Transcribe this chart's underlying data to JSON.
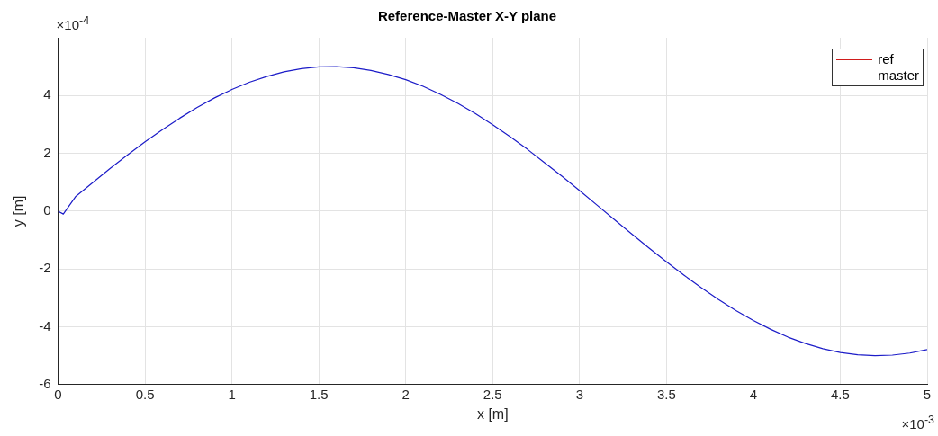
{
  "chart_data": {
    "type": "line",
    "title": "Reference-Master X-Y plane",
    "xlabel": "x [m]",
    "ylabel": "y [m]",
    "annotations": [
      "×10$^{-4}$",
      "×10$^{-3}$"
    ],
    "x": [
      0,
      0.03,
      0.1,
      0.2,
      0.3,
      0.4,
      0.5,
      0.6,
      0.7,
      0.8,
      0.9,
      1,
      1.1,
      1.2,
      1.3,
      1.4,
      1.5,
      1.6,
      1.7,
      1.8,
      1.9,
      2,
      2.1,
      2.2,
      2.3,
      2.4,
      2.5,
      2.6,
      2.7,
      2.8,
      2.9,
      3,
      3.1,
      3.2,
      3.3,
      3.4,
      3.5,
      3.6,
      3.7,
      3.8,
      3.9,
      4,
      4.1,
      4.2,
      4.3,
      4.4,
      4.5,
      4.6,
      4.7,
      4.8,
      4.9,
      5
    ],
    "series": [
      {
        "name": "ref",
        "color": "#d01c1c",
        "values": [
          null,
          null,
          null,
          null,
          null,
          null,
          null,
          null,
          null,
          null,
          null,
          null,
          null,
          null,
          null,
          null,
          null,
          null,
          null,
          null,
          null,
          null,
          null,
          null,
          null,
          null,
          null,
          null,
          null,
          null,
          null,
          null,
          null,
          null,
          null,
          null,
          null,
          null,
          null,
          null,
          null,
          null,
          null,
          null,
          null,
          null,
          null,
          null,
          null,
          null,
          null,
          null
        ]
      },
      {
        "name": "master",
        "color": "#1c1cc8",
        "values": [
          0,
          -0.1,
          0.5,
          0.99,
          1.48,
          1.95,
          2.4,
          2.82,
          3.22,
          3.59,
          3.92,
          4.21,
          4.46,
          4.66,
          4.82,
          4.93,
          4.99,
          5,
          4.96,
          4.87,
          4.73,
          4.55,
          4.32,
          4.04,
          3.73,
          3.38,
          2.99,
          2.58,
          2.14,
          1.67,
          1.2,
          0.71,
          0.21,
          -0.29,
          -0.79,
          -1.28,
          -1.75,
          -2.21,
          -2.65,
          -3.06,
          -3.44,
          -3.78,
          -4.09,
          -4.36,
          -4.58,
          -4.76,
          -4.89,
          -4.97,
          -5,
          -4.98,
          -4.91,
          -4.79
        ]
      }
    ],
    "xlim": [
      0,
      5
    ],
    "xticks": [
      0,
      0.5,
      1,
      1.5,
      2,
      2.5,
      3,
      3.5,
      4,
      4.5,
      5
    ],
    "ylim": [
      -6,
      6
    ],
    "yticks": [
      -6,
      -4,
      -2,
      0,
      2,
      4
    ],
    "grid": true,
    "legend": "top right",
    "marker": "none",
    "line_style": "solid"
  }
}
